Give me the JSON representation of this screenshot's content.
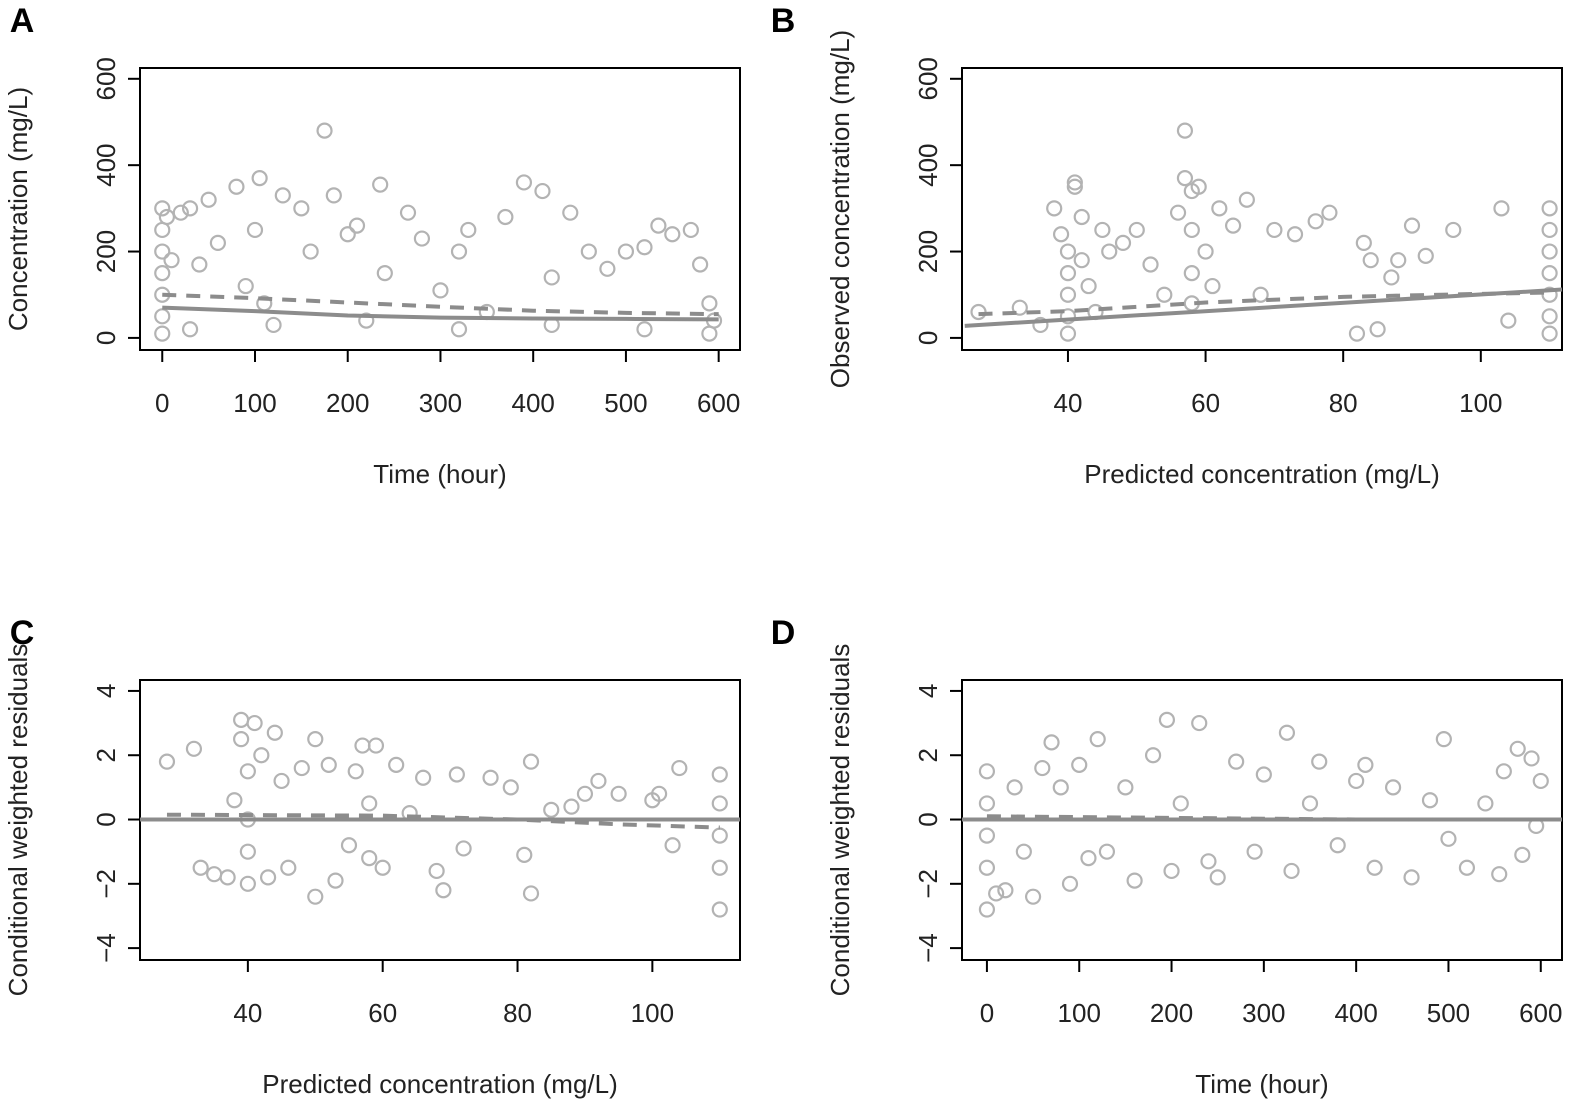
{
  "chart_data": [
    {
      "type": "scatter",
      "panel": "A",
      "x_label": "Time (hour)",
      "y_label": "Concentration (mg/L)",
      "xlim": [
        -24,
        623
      ],
      "ylim": [
        -28,
        625
      ],
      "xticks": [
        0,
        100,
        200,
        300,
        400,
        500,
        600
      ],
      "yticks": [
        0,
        200,
        400,
        600
      ],
      "color": "#b3b3b3",
      "points": {
        "x": [
          0,
          0,
          0,
          0,
          0,
          0,
          0,
          5,
          10,
          20,
          30,
          40,
          50,
          60,
          80,
          90,
          100,
          105,
          110,
          130,
          150,
          160,
          175,
          185,
          200,
          210,
          235,
          240,
          265,
          280,
          300,
          320,
          330,
          350,
          370,
          390,
          410,
          420,
          440,
          460,
          480,
          500,
          520,
          535,
          550,
          570,
          580,
          590,
          595,
          30,
          120,
          220,
          320,
          420,
          520,
          590
        ],
        "y": [
          300,
          250,
          200,
          150,
          100,
          50,
          10,
          280,
          180,
          290,
          300,
          170,
          320,
          220,
          350,
          120,
          250,
          370,
          80,
          330,
          300,
          200,
          480,
          330,
          240,
          260,
          355,
          150,
          290,
          230,
          110,
          200,
          250,
          60,
          280,
          360,
          340,
          140,
          290,
          200,
          160,
          200,
          210,
          260,
          240,
          250,
          170,
          80,
          40,
          20,
          30,
          40,
          20,
          30,
          20,
          10
        ]
      },
      "lines": [
        {
          "style": "solid",
          "color": "#8c8c8c",
          "x": [
            0,
            100,
            200,
            300,
            400,
            500,
            600
          ],
          "y": [
            70,
            62,
            52,
            47,
            45,
            44,
            43
          ]
        },
        {
          "style": "dashed",
          "color": "#8c8c8c",
          "x": [
            0,
            100,
            200,
            300,
            400,
            500,
            600
          ],
          "y": [
            100,
            92,
            82,
            72,
            63,
            58,
            55
          ]
        }
      ]
    },
    {
      "type": "scatter",
      "panel": "B",
      "x_label": "Predicted concentration (mg/L)",
      "y_label": "Observed concentration (mg/L)",
      "xlim": [
        24.6,
        111.8
      ],
      "ylim": [
        -28,
        625
      ],
      "xticks": [
        40,
        60,
        80,
        100
      ],
      "yticks": [
        0,
        200,
        400,
        600
      ],
      "color": "#b3b3b3",
      "points": {
        "x": [
          27,
          33,
          36,
          38,
          39,
          40,
          40,
          40,
          40,
          40,
          41,
          41,
          42,
          42,
          43,
          44,
          45,
          46,
          48,
          50,
          52,
          54,
          56,
          57,
          57,
          58,
          58,
          58,
          58,
          59,
          60,
          61,
          62,
          64,
          66,
          68,
          70,
          73,
          76,
          78,
          82,
          83,
          84,
          85,
          87,
          88,
          90,
          92,
          96,
          103,
          104,
          110,
          110,
          110,
          110,
          110,
          110,
          110
        ],
        "y": [
          60,
          70,
          30,
          300,
          240,
          200,
          150,
          100,
          50,
          10,
          350,
          360,
          280,
          180,
          120,
          60,
          250,
          200,
          220,
          250,
          170,
          100,
          290,
          480,
          370,
          340,
          250,
          150,
          80,
          350,
          200,
          120,
          300,
          260,
          320,
          100,
          250,
          240,
          270,
          290,
          10,
          220,
          180,
          20,
          140,
          180,
          260,
          190,
          250,
          300,
          40,
          300,
          250,
          200,
          150,
          100,
          50,
          10
        ]
      },
      "lines": [
        {
          "style": "solid",
          "color": "#8c8c8c",
          "x": [
            25,
            111.8
          ],
          "y": [
            28,
            112
          ]
        },
        {
          "style": "dashed",
          "color": "#8c8c8c",
          "x": [
            27,
            40,
            60,
            80,
            100,
            110
          ],
          "y": [
            55,
            62,
            82,
            95,
            102,
            105
          ]
        }
      ]
    },
    {
      "type": "scatter",
      "panel": "C",
      "x_label": "Predicted concentration (mg/L)",
      "y_label": "Conditional weighted residuals",
      "xlim": [
        24,
        113
      ],
      "ylim": [
        -4.37,
        4.34
      ],
      "xticks": [
        40,
        60,
        80,
        100
      ],
      "yticks": [
        {
          "value": -4,
          "label": "−4"
        },
        {
          "value": -2,
          "label": "−2"
        },
        0,
        2,
        4
      ],
      "color": "#b3b3b3",
      "points": {
        "x": [
          28,
          32,
          33,
          35,
          37,
          38,
          39,
          39,
          40,
          40,
          40,
          40,
          41,
          42,
          43,
          44,
          45,
          46,
          48,
          50,
          50,
          52,
          53,
          55,
          56,
          57,
          58,
          58,
          59,
          60,
          62,
          64,
          66,
          68,
          69,
          71,
          72,
          76,
          79,
          81,
          82,
          82,
          85,
          88,
          90,
          92,
          95,
          100,
          101,
          103,
          104,
          110,
          110,
          110,
          110,
          110
        ],
        "y": [
          1.8,
          2.2,
          -1.5,
          -1.7,
          -1.8,
          0.6,
          3.1,
          2.5,
          1.5,
          0,
          -1,
          -2,
          3.0,
          2.0,
          -1.8,
          2.7,
          1.2,
          -1.5,
          1.6,
          2.5,
          -2.4,
          1.7,
          -1.9,
          -0.8,
          1.5,
          2.3,
          0.5,
          -1.2,
          2.3,
          -1.5,
          1.7,
          0.2,
          1.3,
          -1.6,
          -2.2,
          1.4,
          -0.9,
          1.3,
          1.0,
          -1.1,
          -2.3,
          1.8,
          0.3,
          0.4,
          0.8,
          1.2,
          0.8,
          0.6,
          0.8,
          -0.8,
          1.6,
          1.4,
          0.5,
          -0.5,
          -1.5,
          -2.8
        ]
      },
      "lines": [
        {
          "style": "solid",
          "color": "#8c8c8c",
          "x": [
            24,
            113
          ],
          "y": [
            0,
            0
          ]
        },
        {
          "style": "dashed",
          "color": "#8c8c8c",
          "x": [
            28,
            60,
            80,
            95,
            110
          ],
          "y": [
            0.15,
            0.12,
            0,
            -0.15,
            -0.25
          ]
        }
      ]
    },
    {
      "type": "scatter",
      "panel": "D",
      "x_label": "Time (hour)",
      "y_label": "Conditional weighted residuals",
      "xlim": [
        -27,
        623
      ],
      "ylim": [
        -4.37,
        4.34
      ],
      "xticks": [
        0,
        100,
        200,
        300,
        400,
        500,
        600
      ],
      "yticks": [
        {
          "value": -4,
          "label": "−4"
        },
        {
          "value": -2,
          "label": "−2"
        },
        0,
        2,
        4
      ],
      "color": "#b3b3b3",
      "points": {
        "x": [
          0,
          0,
          0,
          0,
          0,
          10,
          20,
          30,
          40,
          50,
          60,
          70,
          80,
          90,
          100,
          110,
          120,
          130,
          150,
          160,
          180,
          195,
          200,
          210,
          230,
          240,
          250,
          270,
          290,
          300,
          325,
          330,
          350,
          360,
          380,
          400,
          410,
          420,
          440,
          460,
          480,
          495,
          500,
          520,
          540,
          555,
          560,
          575,
          590,
          595,
          600,
          580
        ],
        "y": [
          1.5,
          0.5,
          -0.5,
          -1.5,
          -2.8,
          -2.3,
          -2.2,
          1.0,
          -1.0,
          -2.4,
          1.6,
          2.4,
          1.0,
          -2.0,
          1.7,
          -1.2,
          2.5,
          -1.0,
          1.0,
          -1.9,
          2.0,
          3.1,
          -1.6,
          0.5,
          3.0,
          -1.3,
          -1.8,
          1.8,
          -1.0,
          1.4,
          2.7,
          -1.6,
          0.5,
          1.8,
          -0.8,
          1.2,
          1.7,
          -1.5,
          1.0,
          -1.8,
          0.6,
          2.5,
          -0.6,
          -1.5,
          0.5,
          -1.7,
          1.5,
          2.2,
          1.9,
          -0.2,
          1.2,
          -1.1
        ]
      },
      "lines": [
        {
          "style": "solid",
          "color": "#8c8c8c",
          "x": [
            -27,
            623
          ],
          "y": [
            0,
            0
          ]
        },
        {
          "style": "dashed",
          "color": "#8c8c8c",
          "x": [
            0,
            200,
            400,
            600
          ],
          "y": [
            0.1,
            0.05,
            0,
            0
          ]
        }
      ]
    }
  ]
}
